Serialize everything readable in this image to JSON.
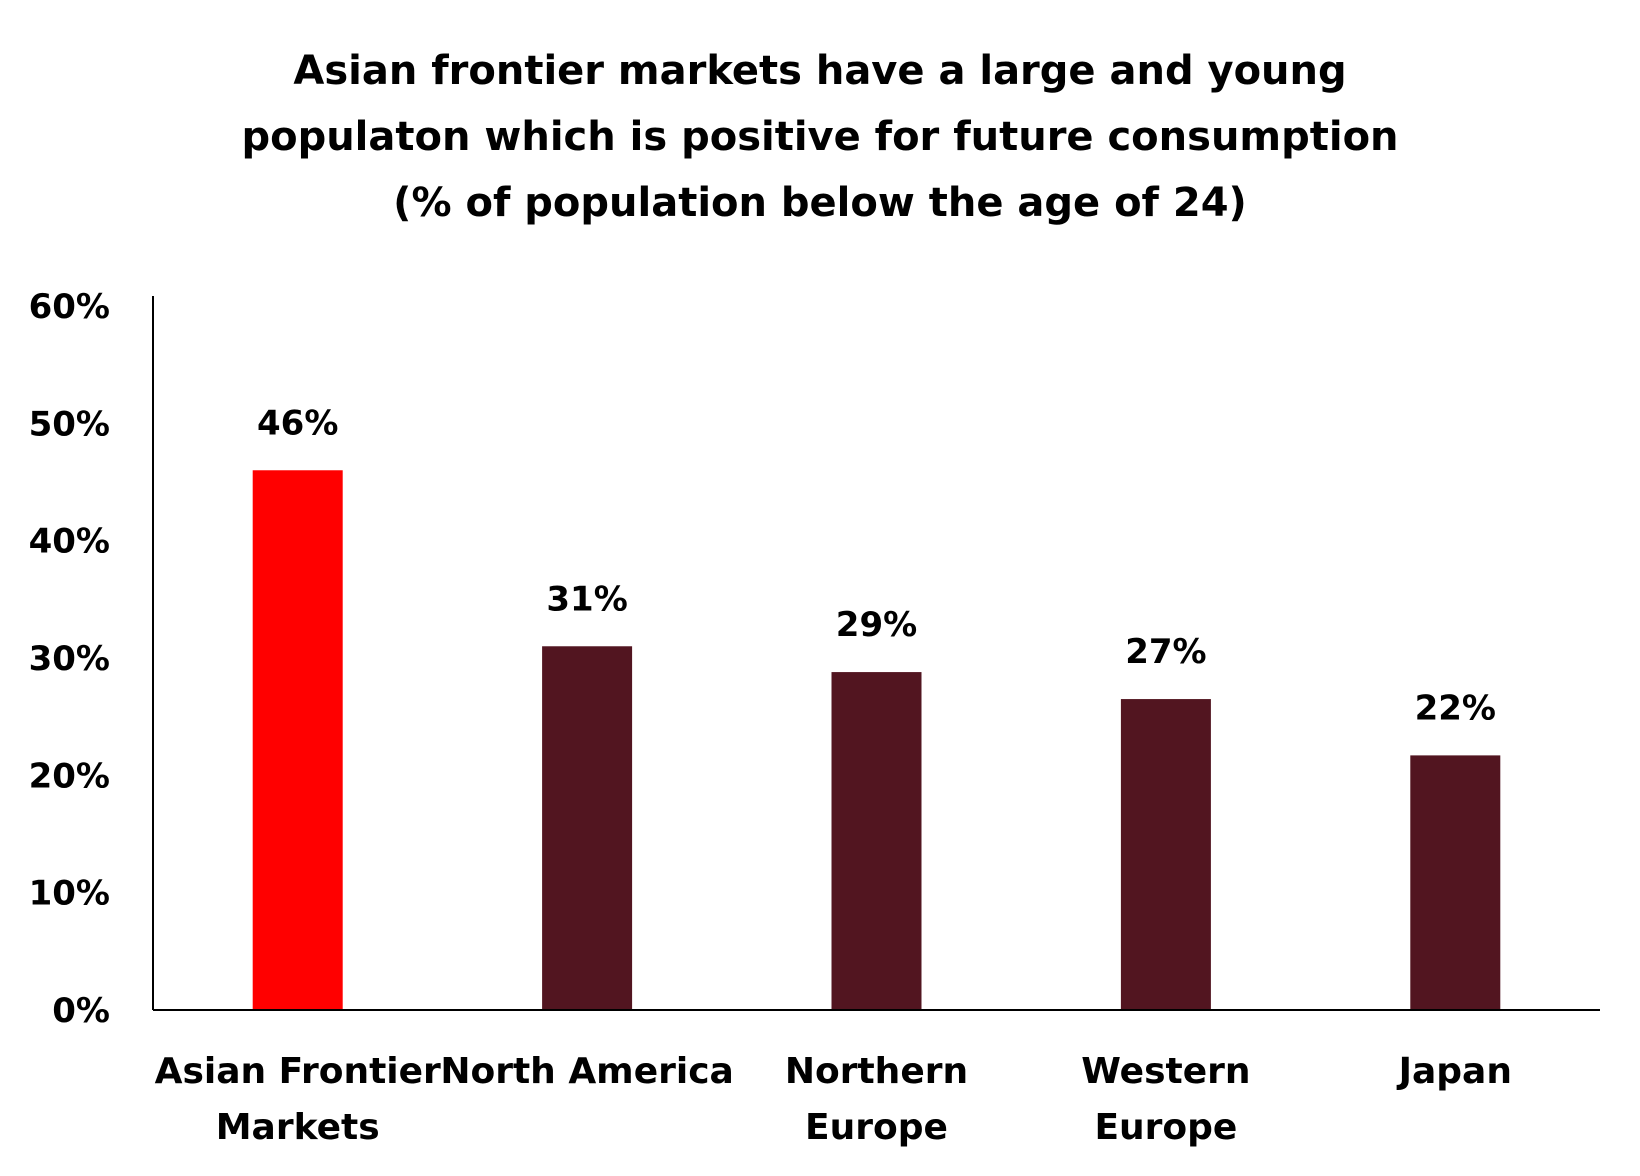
{
  "chart_data": {
    "type": "bar",
    "title_lines": [
      "Asian frontier markets have a large and young",
      "populaton which is positive for future consumption",
      "(% of population below the age of 24)"
    ],
    "categories": [
      [
        "Asian Frontier",
        "Markets"
      ],
      [
        "North America"
      ],
      [
        "Northern",
        "Europe"
      ],
      [
        "Western",
        "Europe"
      ],
      [
        "Japan"
      ]
    ],
    "values": [
      46,
      31,
      29,
      27,
      22
    ],
    "plotted_values": [
      46,
      31,
      28.8,
      26.5,
      21.7
    ],
    "data_labels": [
      "46%",
      "31%",
      "29%",
      "27%",
      "22%"
    ],
    "bar_colors": [
      "#ff0000",
      "#521520",
      "#521520",
      "#521520",
      "#521520"
    ],
    "ylim": [
      0,
      60
    ],
    "yticks": [
      0,
      10,
      20,
      30,
      40,
      50,
      60
    ],
    "ytick_labels": [
      "0%",
      "10%",
      "20%",
      "30%",
      "40%",
      "50%",
      "60%"
    ],
    "xlabel": "",
    "ylabel": "",
    "grid": false,
    "legend": "none"
  }
}
